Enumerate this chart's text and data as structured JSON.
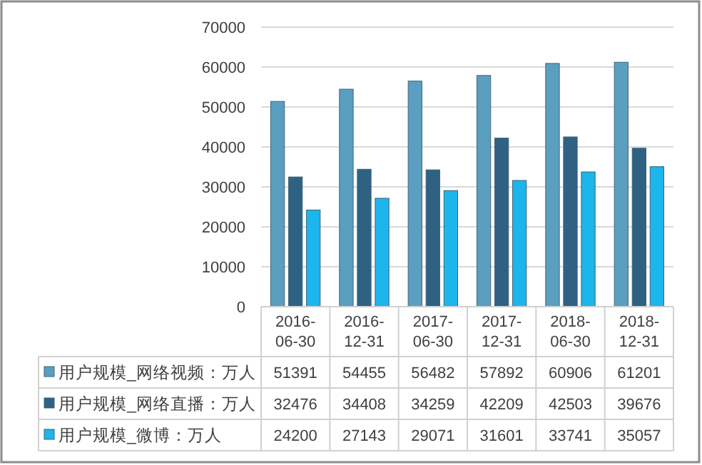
{
  "chart_data": {
    "type": "bar",
    "categories": [
      "2016-06-30",
      "2016-12-31",
      "2017-06-30",
      "2017-12-31",
      "2018-06-30",
      "2018-12-31"
    ],
    "series": [
      {
        "name": "用户规模_网络视频：万人",
        "color": "#5a9fc0",
        "values": [
          51391,
          54455,
          56482,
          57892,
          60906,
          61201
        ]
      },
      {
        "name": "用户规模_网络直播：万人",
        "color": "#2f6182",
        "values": [
          32476,
          34408,
          34259,
          42209,
          42503,
          39676
        ]
      },
      {
        "name": "用户规模_微博：万人",
        "color": "#1cb5ec",
        "values": [
          24200,
          27143,
          29071,
          31601,
          33741,
          35057
        ]
      }
    ],
    "ylim": [
      0,
      70000
    ],
    "yticks": [
      0,
      10000,
      20000,
      30000,
      40000,
      50000,
      60000,
      70000
    ],
    "grid": "y",
    "data_labels": true,
    "legend": "bottom"
  }
}
